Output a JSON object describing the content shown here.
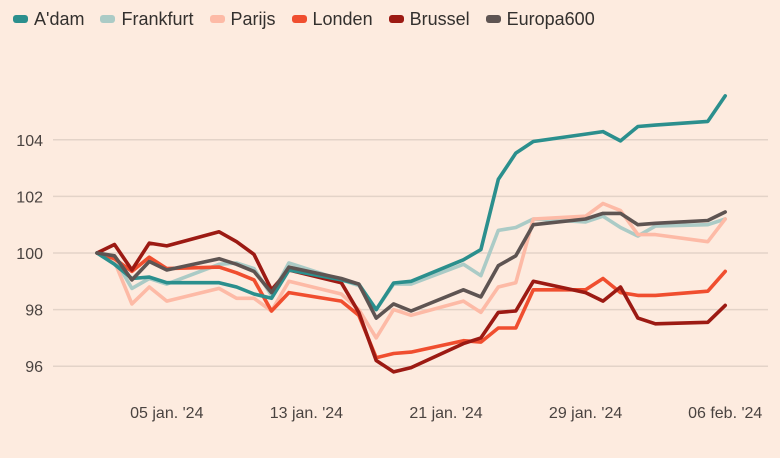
{
  "chart_data": {
    "type": "line",
    "title": "",
    "xlabel": "",
    "ylabel": "",
    "ylim": [
      95.3,
      106.2
    ],
    "grid": true,
    "legend_position": "top-left",
    "yticks": [
      96,
      98,
      100,
      102,
      104
    ],
    "ytick_labels": [
      "96",
      "98",
      "100",
      "102",
      "104"
    ],
    "xticks": [
      "2024-01-05",
      "2024-01-13",
      "2024-01-21",
      "2024-01-29",
      "2024-02-06"
    ],
    "xtick_labels": [
      "05 jan. '24",
      "13 jan. '24",
      "21 jan. '24",
      "29 jan. '24",
      "06 feb. '24"
    ],
    "x": [
      "2024-01-01",
      "2024-01-02",
      "2024-01-03",
      "2024-01-04",
      "2024-01-05",
      "2024-01-08",
      "2024-01-09",
      "2024-01-10",
      "2024-01-11",
      "2024-01-12",
      "2024-01-15",
      "2024-01-16",
      "2024-01-17",
      "2024-01-18",
      "2024-01-19",
      "2024-01-22",
      "2024-01-23",
      "2024-01-24",
      "2024-01-25",
      "2024-01-26",
      "2024-01-29",
      "2024-01-30",
      "2024-01-31",
      "2024-02-01",
      "2024-02-02",
      "2024-02-05",
      "2024-02-06"
    ],
    "series": [
      {
        "name": "A'dam",
        "color": "#2b8f8d",
        "values": [
          100,
          99.6,
          99.1,
          99.15,
          98.95,
          98.95,
          98.8,
          98.55,
          98.4,
          99.4,
          99.05,
          98.9,
          98.0,
          98.94,
          99.0,
          99.76,
          100.12,
          102.6,
          103.53,
          103.94,
          104.2,
          104.29,
          103.96,
          104.47,
          104.52,
          104.65,
          105.55
        ]
      },
      {
        "name": "Frankfurt",
        "color": "#abcbc6",
        "values": [
          100,
          99.8,
          98.75,
          99.1,
          98.9,
          99.6,
          99.65,
          99.45,
          98.5,
          99.65,
          99.05,
          98.85,
          98.0,
          98.9,
          98.9,
          99.6,
          99.2,
          100.8,
          100.9,
          101.2,
          101.1,
          101.3,
          100.9,
          100.6,
          100.95,
          101.0,
          101.2
        ]
      },
      {
        "name": "Parijs",
        "color": "#fdbaa6",
        "values": [
          100,
          99.7,
          98.2,
          98.8,
          98.3,
          98.75,
          98.4,
          98.4,
          97.95,
          99.0,
          98.55,
          98.0,
          97.0,
          98.0,
          97.8,
          98.3,
          97.9,
          98.8,
          98.95,
          101.2,
          101.3,
          101.75,
          101.5,
          100.65,
          100.65,
          100.4,
          101.2
        ]
      },
      {
        "name": "Londen",
        "color": "#f04e2f",
        "values": [
          100,
          99.8,
          99.35,
          99.85,
          99.45,
          99.5,
          99.3,
          99.05,
          97.95,
          98.6,
          98.3,
          97.8,
          96.3,
          96.45,
          96.5,
          96.9,
          96.85,
          97.35,
          97.35,
          98.7,
          98.7,
          99.1,
          98.6,
          98.5,
          98.5,
          98.65,
          99.35
        ]
      },
      {
        "name": "Brussel",
        "color": "#9c1a13",
        "values": [
          100,
          100.3,
          99.4,
          100.35,
          100.25,
          100.75,
          100.4,
          99.95,
          98.7,
          99.4,
          98.95,
          97.9,
          96.2,
          95.8,
          95.95,
          96.8,
          97.0,
          97.9,
          97.95,
          99.0,
          98.6,
          98.3,
          98.8,
          97.7,
          97.5,
          97.55,
          98.15
        ]
      },
      {
        "name": "Europa600",
        "color": "#5e5452",
        "values": [
          100,
          99.9,
          99.05,
          99.7,
          99.4,
          99.8,
          99.6,
          99.35,
          98.6,
          99.5,
          99.1,
          98.9,
          97.7,
          98.2,
          97.95,
          98.7,
          98.45,
          99.55,
          99.9,
          101.0,
          101.2,
          101.4,
          101.4,
          101.0,
          101.05,
          101.15,
          101.45
        ]
      }
    ]
  },
  "colors": {
    "background": "#fdebdf",
    "grid": "#e3d3c8"
  }
}
